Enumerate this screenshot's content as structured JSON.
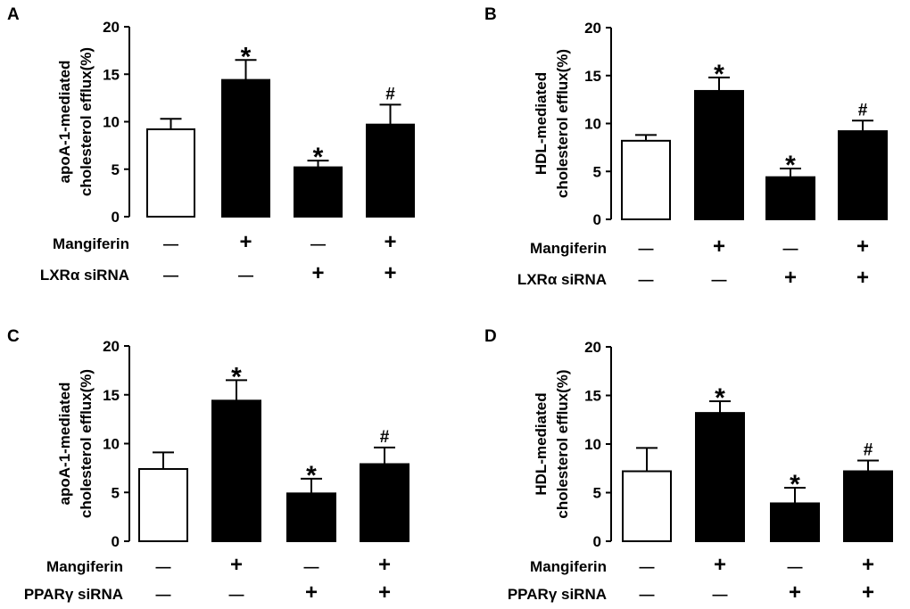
{
  "chart_data": [
    {
      "type": "bar",
      "panel_label": "A",
      "ylabel_lines": [
        "apoA-1-mediated",
        "cholesterol efflux(%)"
      ],
      "ylim": [
        0,
        20
      ],
      "yticks": [
        "0",
        "5",
        "10",
        "15",
        "20"
      ],
      "values": [
        9.2,
        14.4,
        5.2,
        9.7
      ],
      "errors": [
        1.1,
        2.1,
        0.7,
        2.1
      ],
      "fills": [
        "#ffffff",
        "#000000",
        "#000000",
        "#000000"
      ],
      "marks": [
        "",
        "*",
        "*",
        "#"
      ],
      "conditions": [
        {
          "label": "Mangiferin",
          "signs": [
            "—",
            "+",
            "—",
            "+"
          ]
        },
        {
          "label": "LXRα siRNA",
          "signs": [
            "—",
            "—",
            "+",
            "+"
          ]
        }
      ]
    },
    {
      "type": "bar",
      "panel_label": "B",
      "ylabel_lines": [
        "HDL-mediated",
        "cholesterol efflux(%)"
      ],
      "ylim": [
        0,
        20
      ],
      "yticks": [
        "0",
        "5",
        "10",
        "15",
        "20"
      ],
      "values": [
        8.2,
        13.4,
        4.4,
        9.2
      ],
      "errors": [
        0.6,
        1.4,
        0.9,
        1.1
      ],
      "fills": [
        "#ffffff",
        "#000000",
        "#000000",
        "#000000"
      ],
      "marks": [
        "",
        "*",
        "*",
        "#"
      ],
      "conditions": [
        {
          "label": "Mangiferin",
          "signs": [
            "—",
            "+",
            "—",
            "+"
          ]
        },
        {
          "label": "LXRα siRNA",
          "signs": [
            "—",
            "—",
            "+",
            "+"
          ]
        }
      ]
    },
    {
      "type": "bar",
      "panel_label": "C",
      "ylabel_lines": [
        "apoA-1-mediated",
        "cholesterol efflux(%)"
      ],
      "ylim": [
        0,
        20
      ],
      "yticks": [
        "0",
        "5",
        "10",
        "15",
        "20"
      ],
      "values": [
        7.4,
        14.4,
        4.9,
        7.9
      ],
      "errors": [
        1.7,
        2.1,
        1.5,
        1.7
      ],
      "fills": [
        "#ffffff",
        "#000000",
        "#000000",
        "#000000"
      ],
      "marks": [
        "",
        "*",
        "*",
        "#"
      ],
      "conditions": [
        {
          "label": "Mangiferin",
          "signs": [
            "—",
            "+",
            "—",
            "+"
          ]
        },
        {
          "label": "PPARγ siRNA",
          "signs": [
            "—",
            "—",
            "+",
            "+"
          ]
        }
      ]
    },
    {
      "type": "bar",
      "panel_label": "D",
      "ylabel_lines": [
        "HDL-mediated",
        "cholesterol efflux(%)"
      ],
      "ylim": [
        0,
        20
      ],
      "yticks": [
        "0",
        "5",
        "10",
        "15",
        "20"
      ],
      "values": [
        7.2,
        13.2,
        3.9,
        7.2
      ],
      "errors": [
        2.4,
        1.2,
        1.6,
        1.1
      ],
      "fills": [
        "#ffffff",
        "#000000",
        "#000000",
        "#000000"
      ],
      "marks": [
        "",
        "*",
        "*",
        "#"
      ],
      "conditions": [
        {
          "label": "Mangiferin",
          "signs": [
            "—",
            "+",
            "—",
            "+"
          ]
        },
        {
          "label": "PPARγ siRNA",
          "signs": [
            "—",
            "—",
            "+",
            "+"
          ]
        }
      ]
    }
  ]
}
